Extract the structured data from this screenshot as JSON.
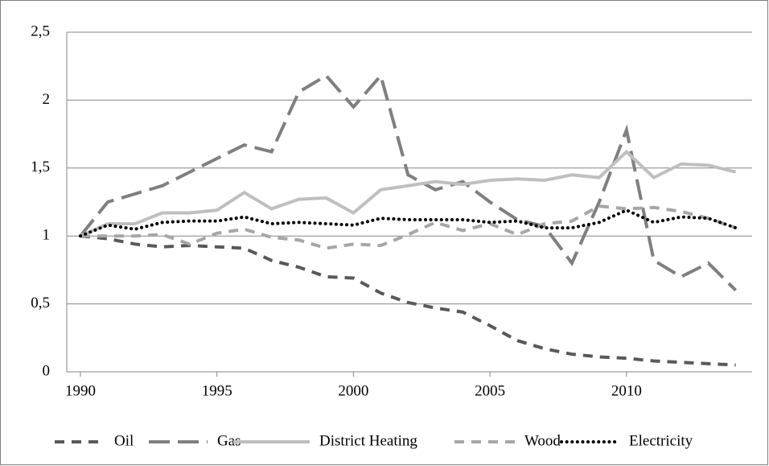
{
  "chart_data": {
    "type": "line",
    "x": [
      1990,
      1991,
      1992,
      1993,
      1994,
      1995,
      1996,
      1997,
      1998,
      1999,
      2000,
      2001,
      2002,
      2003,
      2004,
      2005,
      2006,
      2007,
      2008,
      2009,
      2010,
      2011,
      2012,
      2013,
      2014
    ],
    "xlim": [
      1989.5,
      2014.6
    ],
    "xticks": [
      1990,
      1995,
      2000,
      2005,
      2010
    ],
    "ylim": [
      0,
      2.5
    ],
    "yticks": [
      0,
      {
        "value": 0.5,
        "label": "0,5"
      },
      1,
      {
        "value": 1.5,
        "label": "1,5"
      },
      2,
      {
        "value": 2.5,
        "label": "2,5"
      }
    ],
    "grid": true,
    "legend": "bottom",
    "series": [
      {
        "name": "Oil",
        "color": "#595959",
        "dash": "dashed",
        "values": [
          1,
          0.98,
          0.94,
          0.92,
          0.93,
          0.92,
          0.91,
          0.82,
          0.77,
          0.7,
          0.69,
          0.58,
          0.51,
          0.47,
          0.44,
          0.34,
          0.23,
          0.17,
          0.13,
          0.11,
          0.1,
          0.08,
          0.07,
          0.06,
          0.05
        ]
      },
      {
        "name": "Gas",
        "color": "#7f7f7f",
        "dash": "long-dashed",
        "values": [
          1,
          1.25,
          1.31,
          1.37,
          1.47,
          1.57,
          1.67,
          1.62,
          2.06,
          2.18,
          1.95,
          2.18,
          1.45,
          1.34,
          1.4,
          1.25,
          1.12,
          1.07,
          0.8,
          1.25,
          1.78,
          0.82,
          0.7,
          0.8,
          0.6
        ]
      },
      {
        "name": "District Heating",
        "color": "#bfbfbf",
        "dash": "solid",
        "values": [
          1,
          1.09,
          1.09,
          1.17,
          1.17,
          1.19,
          1.32,
          1.2,
          1.27,
          1.28,
          1.17,
          1.34,
          1.37,
          1.4,
          1.38,
          1.41,
          1.42,
          1.41,
          1.45,
          1.43,
          1.62,
          1.43,
          1.53,
          1.52,
          1.47
        ]
      },
      {
        "name": "Wood",
        "color": "#a6a6a6",
        "dash": "dashed",
        "values": [
          1,
          1.0,
          1.0,
          1.01,
          0.94,
          1.02,
          1.05,
          0.99,
          0.97,
          0.91,
          0.94,
          0.93,
          1.01,
          1.1,
          1.04,
          1.09,
          1.01,
          1.09,
          1.11,
          1.22,
          1.2,
          1.21,
          1.18,
          1.13,
          1.06
        ]
      },
      {
        "name": "Electricity",
        "color": "#000000",
        "dash": "dotted",
        "values": [
          1,
          1.08,
          1.05,
          1.1,
          1.11,
          1.11,
          1.14,
          1.09,
          1.1,
          1.09,
          1.08,
          1.13,
          1.12,
          1.12,
          1.12,
          1.1,
          1.11,
          1.06,
          1.06,
          1.1,
          1.19,
          1.1,
          1.14,
          1.13,
          1.06
        ]
      }
    ]
  }
}
